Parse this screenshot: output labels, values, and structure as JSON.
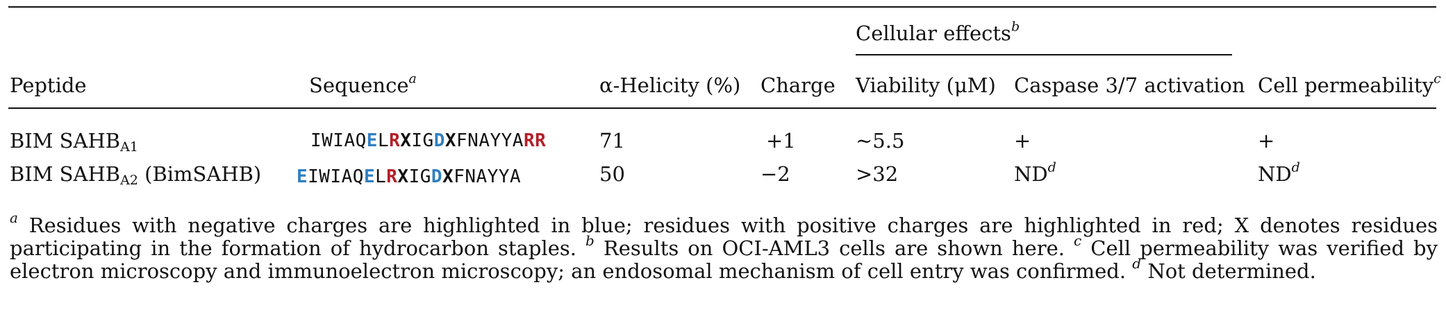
{
  "table": {
    "group_header": "Cellular effects",
    "group_header_mark": "b",
    "headers": {
      "peptide": "Peptide",
      "sequence": "Sequence",
      "sequence_mark": "a",
      "helicity": "α-Helicity (%)",
      "charge": "Charge",
      "viability": "Viability (μM)",
      "caspase": "Caspase 3/7 activation",
      "permeability": "Cell permeability",
      "permeability_mark": "c"
    },
    "rows": [
      {
        "peptide_name": "BIM SAHB",
        "peptide_sub": "A1",
        "peptide_suffix": "",
        "sequence": [
          {
            "t": "IWIAQ",
            "k": "plain"
          },
          {
            "t": "E",
            "k": "neg"
          },
          {
            "t": "L",
            "k": "plain"
          },
          {
            "t": "R",
            "k": "pos"
          },
          {
            "t": "X",
            "k": "stp"
          },
          {
            "t": "IG",
            "k": "plain"
          },
          {
            "t": "D",
            "k": "neg"
          },
          {
            "t": "X",
            "k": "stp"
          },
          {
            "t": "FNAYYA",
            "k": "plain"
          },
          {
            "t": "RR",
            "k": "pos"
          }
        ],
        "helicity": "71",
        "charge": "+1",
        "viability": "~5.5",
        "caspase": "+",
        "caspase_mark": "",
        "permeability": "+",
        "permeability_mark": ""
      },
      {
        "peptide_name": "BIM SAHB",
        "peptide_sub": "A2",
        "peptide_suffix": " (BimSAHB)",
        "sequence": [
          {
            "t": "E",
            "k": "neg"
          },
          {
            "t": "IWIAQ",
            "k": "plain"
          },
          {
            "t": "E",
            "k": "neg"
          },
          {
            "t": "L",
            "k": "plain"
          },
          {
            "t": "R",
            "k": "pos"
          },
          {
            "t": "X",
            "k": "stp"
          },
          {
            "t": "IG",
            "k": "plain"
          },
          {
            "t": "D",
            "k": "neg"
          },
          {
            "t": "X",
            "k": "stp"
          },
          {
            "t": "FNAYYA",
            "k": "plain"
          }
        ],
        "helicity": "50",
        "charge": "−2",
        "viability": ">32",
        "caspase": "ND",
        "caspase_mark": "d",
        "permeability": "ND",
        "permeability_mark": "d"
      }
    ]
  },
  "footnotes": [
    {
      "mark": "a",
      "text": " Residues with negative charges are highlighted in blue; residues with positive charges are highlighted in red; X denotes residues participating in the formation of hydrocarbon staples. "
    },
    {
      "mark": "b",
      "text": " Results on OCI-AML3 cells are shown here. "
    },
    {
      "mark": "c",
      "text": " Cell permeability was verified by electron microscopy and immunoelectron microscopy; an endosomal mechanism of cell entry was confirmed. "
    },
    {
      "mark": "d",
      "text": " Not determined."
    }
  ],
  "colors": {
    "negative_residue": "#2f7fc1",
    "positive_residue": "#b3202a"
  }
}
